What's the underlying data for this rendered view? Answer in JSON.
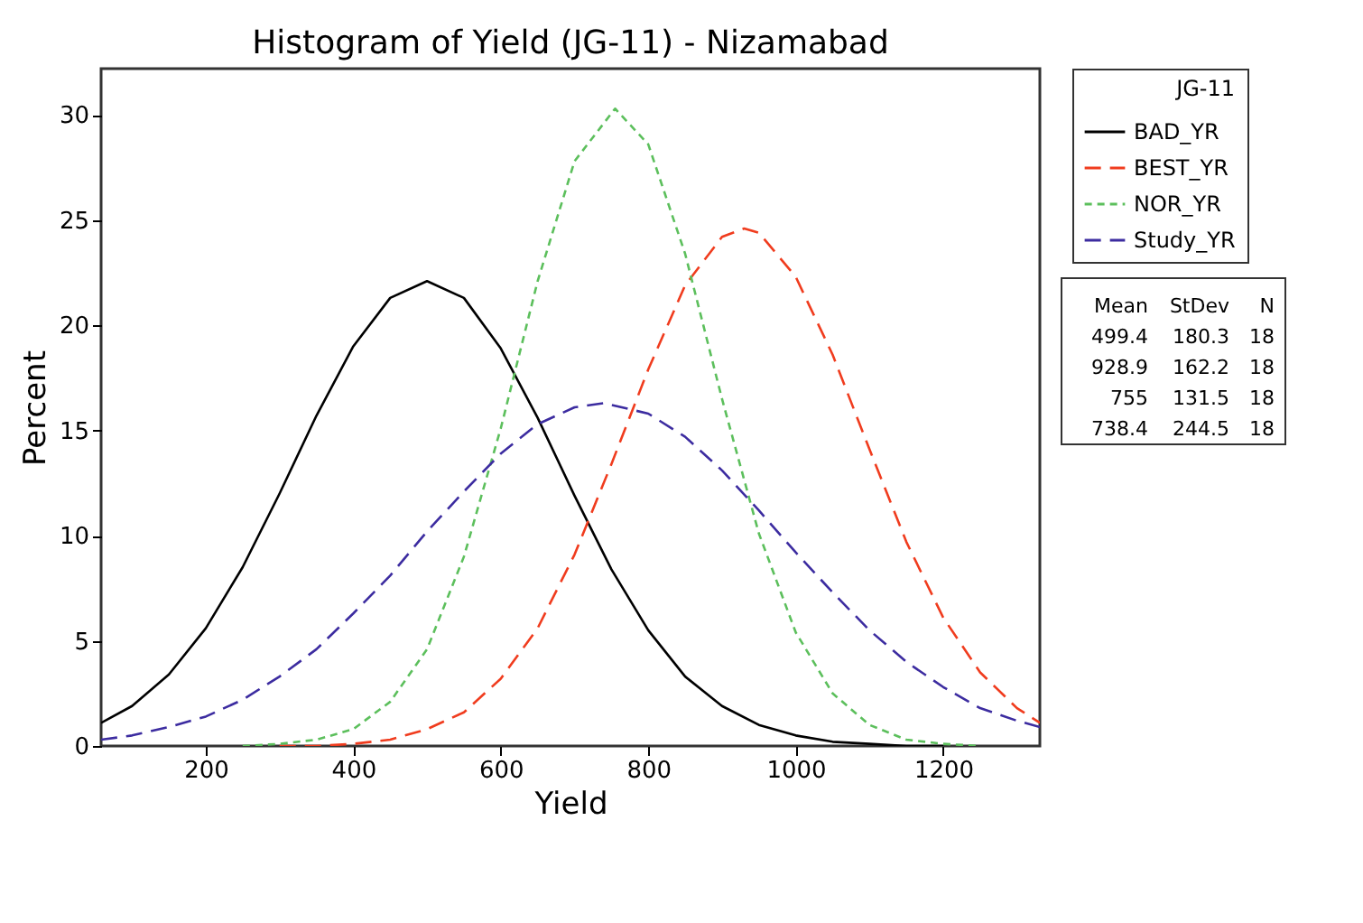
{
  "chart_data": {
    "type": "line",
    "title": "Histogram of Yield (JG-11) - Nizamabad",
    "xlabel": "Yield",
    "ylabel": "Percent",
    "legend_title": "JG-11",
    "legend": "right",
    "grid": false,
    "xlim": [
      58,
      1331
    ],
    "xticks": [
      200,
      400,
      600,
      800,
      1000,
      1200
    ],
    "ylim": [
      0,
      32.2
    ],
    "yticks": [
      0,
      5,
      10,
      15,
      20,
      25,
      30
    ],
    "series": [
      {
        "name": "BAD_YR",
        "color": "#000000",
        "line_style": "solid",
        "x": [
          58,
          100,
          150,
          200,
          250,
          300,
          350,
          400,
          450,
          500,
          550,
          600,
          650,
          700,
          750,
          800,
          850,
          900,
          950,
          1000,
          1050,
          1100,
          1150,
          1200
        ],
        "values": [
          1.1,
          1.9,
          3.4,
          5.6,
          8.5,
          12.0,
          15.7,
          19.0,
          21.3,
          22.1,
          21.3,
          18.9,
          15.6,
          11.9,
          8.4,
          5.5,
          3.3,
          1.9,
          1.0,
          0.5,
          0.2,
          0.1,
          0.0,
          0.0
        ]
      },
      {
        "name": "BEST_YR",
        "color": "#f03c1e",
        "line_style": "dashed",
        "x": [
          300,
          350,
          400,
          450,
          500,
          550,
          600,
          650,
          700,
          750,
          800,
          850,
          900,
          930,
          950,
          1000,
          1050,
          1100,
          1150,
          1200,
          1250,
          1300,
          1331
        ],
        "values": [
          0.0,
          0.0,
          0.1,
          0.3,
          0.8,
          1.6,
          3.2,
          5.6,
          9.1,
          13.4,
          17.9,
          21.9,
          24.2,
          24.6,
          24.4,
          22.3,
          18.6,
          14.1,
          9.7,
          6.1,
          3.5,
          1.8,
          1.1
        ]
      },
      {
        "name": "NOR_YR",
        "color": "#5cbf5c",
        "line_style": "dotted",
        "x": [
          250,
          300,
          350,
          400,
          450,
          500,
          550,
          600,
          650,
          700,
          755,
          800,
          850,
          900,
          950,
          1000,
          1050,
          1100,
          1150,
          1200,
          1250
        ],
        "values": [
          0.0,
          0.1,
          0.3,
          0.8,
          2.1,
          4.6,
          9.0,
          15.1,
          22.1,
          27.8,
          30.3,
          28.6,
          23.4,
          16.5,
          10.1,
          5.4,
          2.5,
          1.0,
          0.3,
          0.1,
          0.0
        ]
      },
      {
        "name": "Study_YR",
        "color": "#3c2ca0",
        "line_style": "dashed",
        "x": [
          58,
          100,
          150,
          200,
          250,
          300,
          350,
          400,
          450,
          500,
          550,
          600,
          650,
          700,
          740,
          800,
          850,
          900,
          950,
          1000,
          1050,
          1100,
          1150,
          1200,
          1250,
          1300,
          1331
        ],
        "values": [
          0.3,
          0.5,
          0.9,
          1.4,
          2.2,
          3.3,
          4.6,
          6.3,
          8.1,
          10.2,
          12.1,
          13.9,
          15.3,
          16.1,
          16.3,
          15.8,
          14.7,
          13.1,
          11.2,
          9.2,
          7.3,
          5.5,
          4.0,
          2.8,
          1.8,
          1.2,
          0.9
        ]
      }
    ],
    "annotations": [
      "Mean StDev N",
      "499.4 180.3 18",
      "928.9 162.2 18",
      "755 131.5 18",
      "738.4 244.5 18"
    ]
  }
}
